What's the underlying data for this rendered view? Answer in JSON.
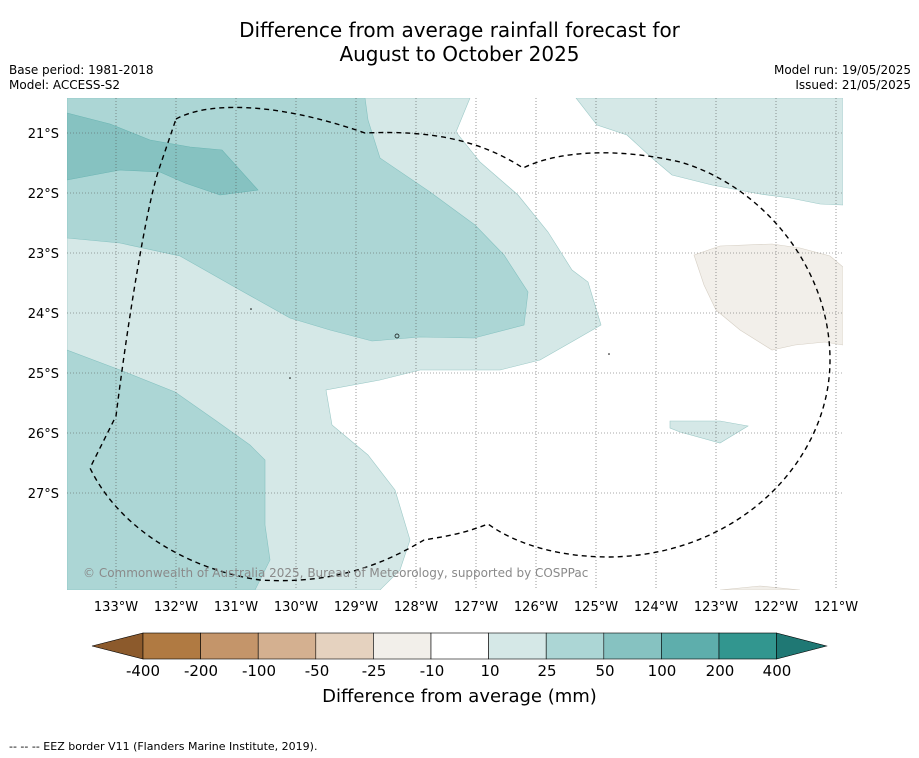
{
  "title_line1": "Difference from average rainfall forecast for",
  "title_line2": "August to October 2025",
  "base_period": "Base period: 1981-2018",
  "model": "Model: ACCESS-S2",
  "model_run": "Model run: 19/05/2025",
  "issued": "Issued: 21/05/2025",
  "copyright": "© Commonwealth of Australia 2025, Bureau of Meteorology, supported by COSPPac",
  "lat_labels": [
    "21°S",
    "22°S",
    "23°S",
    "24°S",
    "25°S",
    "26°S",
    "27°S"
  ],
  "lon_labels": [
    "133°W",
    "132°W",
    "131°W",
    "130°W",
    "129°W",
    "128°W",
    "127°W",
    "126°W",
    "125°W",
    "124°W",
    "123°W",
    "122°W",
    "121°W"
  ],
  "colorbar": {
    "ticks": [
      "-400",
      "-200",
      "-100",
      "-50",
      "-25",
      "-10",
      "10",
      "25",
      "50",
      "100",
      "200",
      "400"
    ],
    "colors": [
      "#8c5a2c",
      "#b07a42",
      "#c4956a",
      "#d4b090",
      "#e5d2bf",
      "#f2efea",
      "#ffffff",
      "#d5e8e7",
      "#acd6d5",
      "#86c2c1",
      "#5eaeac",
      "#32968f",
      "#1f7874"
    ],
    "title": "Difference from average (mm)"
  },
  "footnote": "--  --  -- EEZ border V11 (Flanders Marine Institute, 2019)."
}
